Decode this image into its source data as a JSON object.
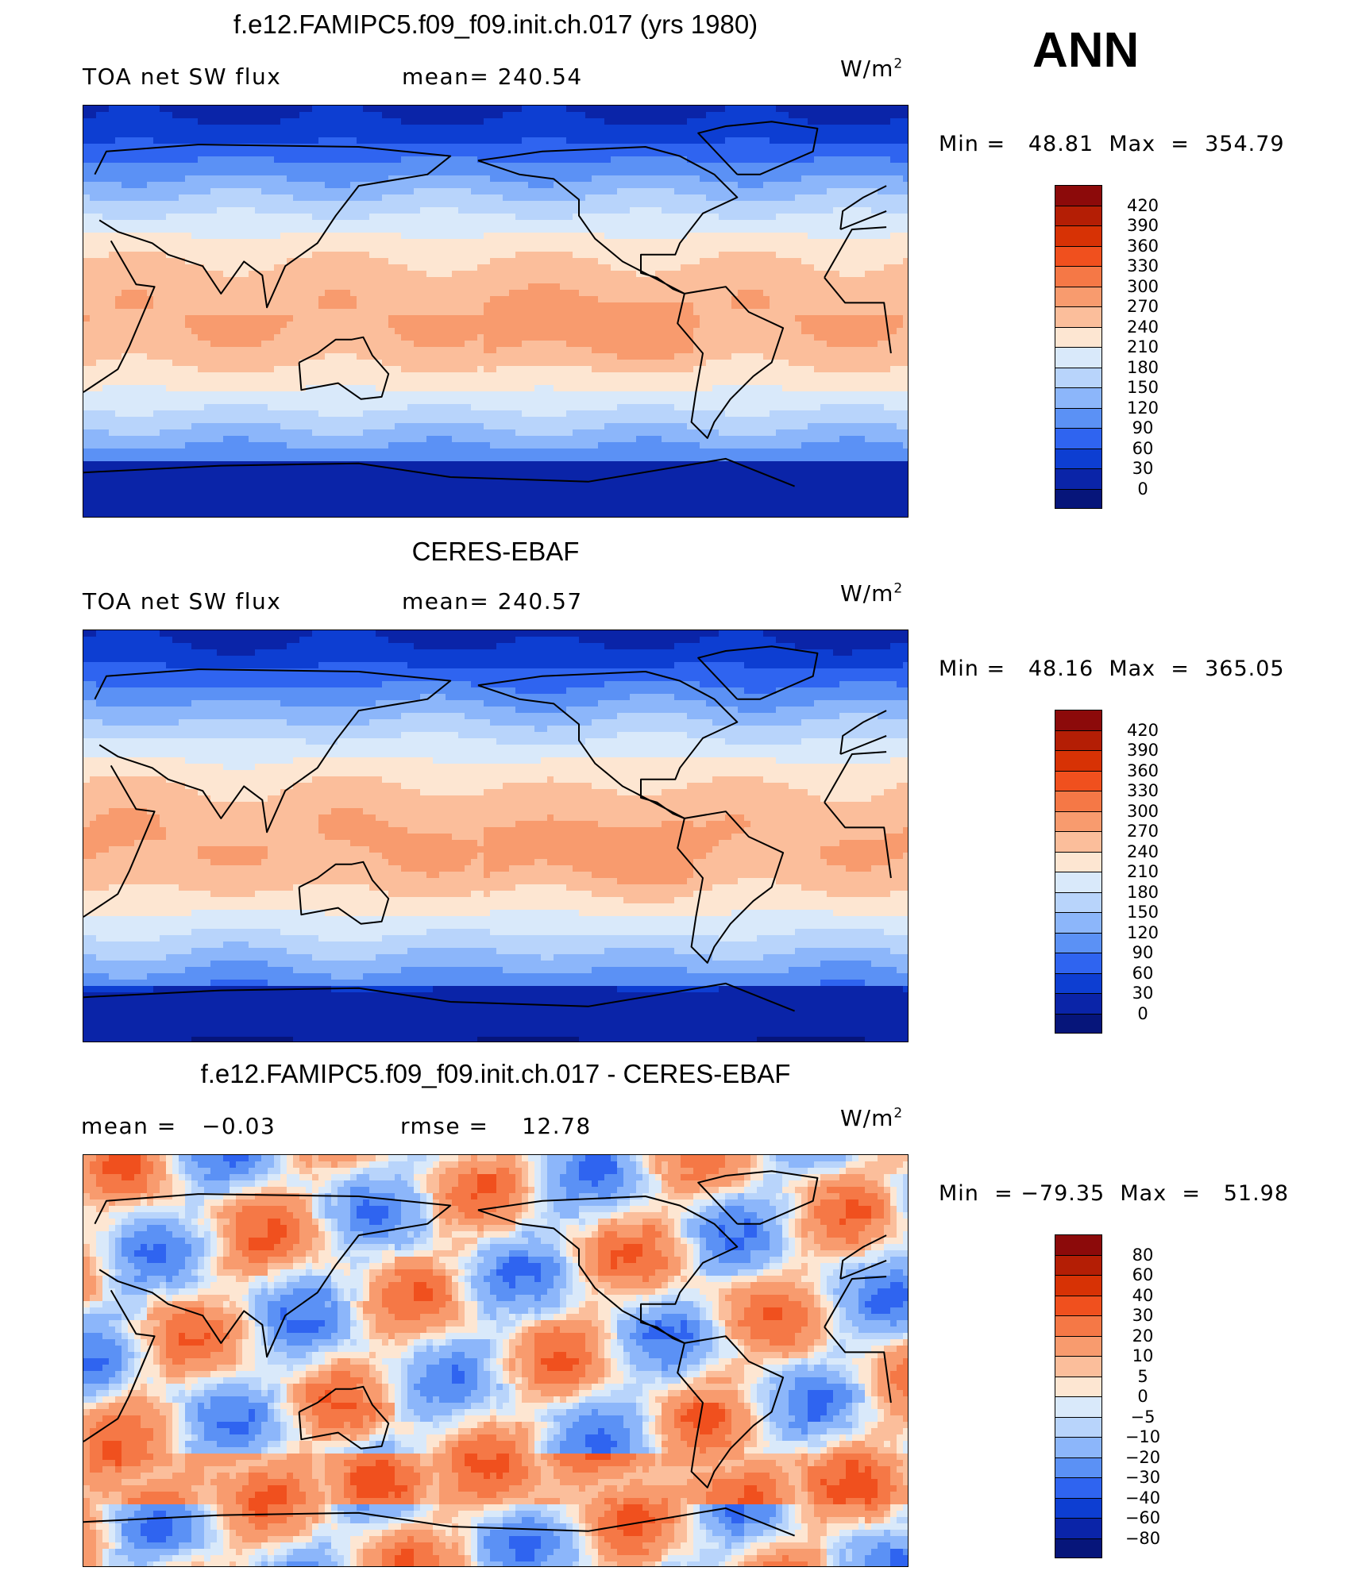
{
  "header": {
    "season": "ANN"
  },
  "units_label": "W/m",
  "units_exp": "2",
  "panels": [
    {
      "title": "f.e12.FAMIPC5.f09_f09.init.ch.017 (yrs 1980)",
      "left_label": "TOA net SW flux",
      "right_label": "mean= 240.54",
      "minmax": "Min =   48.81  Max  =  354.79",
      "field": "model"
    },
    {
      "title": "CERES-EBAF",
      "left_label": "TOA net SW flux",
      "right_label": "mean= 240.57",
      "minmax": "Min =   48.16  Max  =  365.05",
      "field": "obs"
    },
    {
      "title": "f.e12.FAMIPC5.f09_f09.init.ch.017 - CERES-EBAF",
      "left_label": "mean =   −0.03",
      "right_label": "rmse =    12.78",
      "minmax": "Min  = −79.35  Max  =   51.98",
      "field": "diff"
    }
  ],
  "colorbars": {
    "abs": {
      "ticks": [
        "420",
        "390",
        "360",
        "330",
        "300",
        "270",
        "240",
        "210",
        "180",
        "150",
        "120",
        "90",
        "60",
        "30",
        "0"
      ],
      "colors": [
        "#8c0a0a",
        "#b41e05",
        "#d73205",
        "#f0501e",
        "#f57846",
        "#f89b6e",
        "#fbbe9b",
        "#fde6d2",
        "#d9e9fa",
        "#b8d4fb",
        "#8cb6fa",
        "#5b91f5",
        "#2f64f0",
        "#0d3ed2",
        "#0a24a8",
        "#06157a"
      ]
    },
    "diff": {
      "ticks": [
        "80",
        "60",
        "40",
        "30",
        "20",
        "10",
        "5",
        "0",
        "−5",
        "−10",
        "−20",
        "−30",
        "−40",
        "−60",
        "−80"
      ],
      "colors": [
        "#8c0a0a",
        "#b41e05",
        "#d73205",
        "#f0501e",
        "#f57846",
        "#f89b6e",
        "#fbbe9b",
        "#fde6d2",
        "#d9e9fa",
        "#b8d4fb",
        "#8cb6fa",
        "#5b91f5",
        "#2f64f0",
        "#0d3ed2",
        "#0a24a8",
        "#06157a"
      ]
    }
  }
}
